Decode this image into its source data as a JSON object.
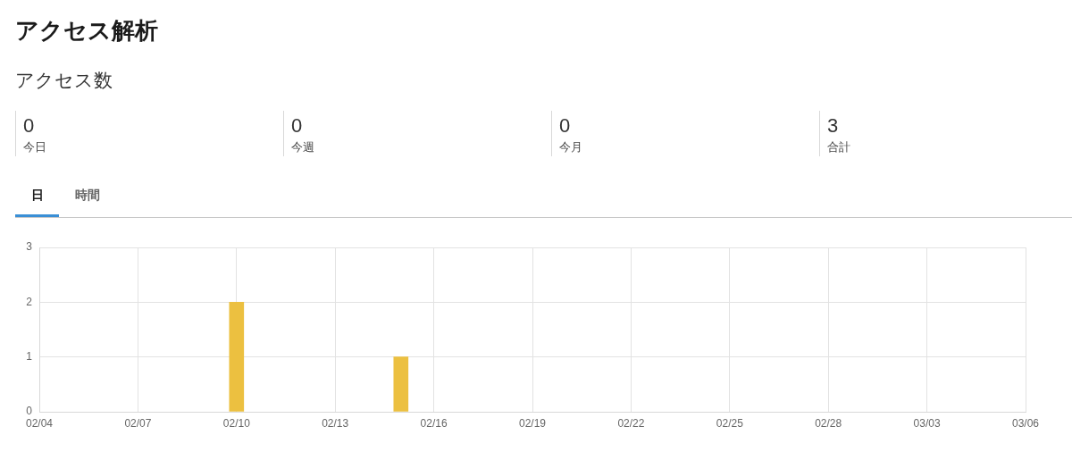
{
  "chart_data": [
    {
      "type": "other",
      "title": "アクセス解析",
      "subtitle": "アクセス数",
      "categories": [
        "今日",
        "今週",
        "今月",
        "合計"
      ],
      "values": [
        0,
        0,
        0,
        3
      ],
      "data_labels": true
    },
    {
      "type": "bar",
      "annotations": [
        "日",
        "時間"
      ],
      "x": [
        "--02-10",
        "--02-15"
      ],
      "values": [
        2,
        1
      ],
      "color": "#ecc040",
      "xlim": [
        "--02-04",
        "--03-06"
      ],
      "xticks": [
        {
          "value": "--02-04",
          "label": "02/04"
        },
        {
          "value": "--02-07",
          "label": "02/07"
        },
        {
          "value": "--02-10",
          "label": "02/10"
        },
        {
          "value": "--02-13",
          "label": "02/13"
        },
        {
          "value": "--02-16",
          "label": "02/16"
        },
        {
          "value": "--02-19",
          "label": "02/19"
        },
        {
          "value": "--02-22",
          "label": "02/22"
        },
        {
          "value": "--02-25",
          "label": "02/25"
        },
        {
          "value": "--02-28",
          "label": "02/28"
        },
        {
          "value": "--03-03",
          "label": "03/03"
        },
        {
          "value": "--03-06",
          "label": "03/06"
        }
      ],
      "ylim": [
        0,
        3
      ],
      "yticks": [
        0,
        1,
        2,
        3
      ],
      "grid": true
    }
  ]
}
